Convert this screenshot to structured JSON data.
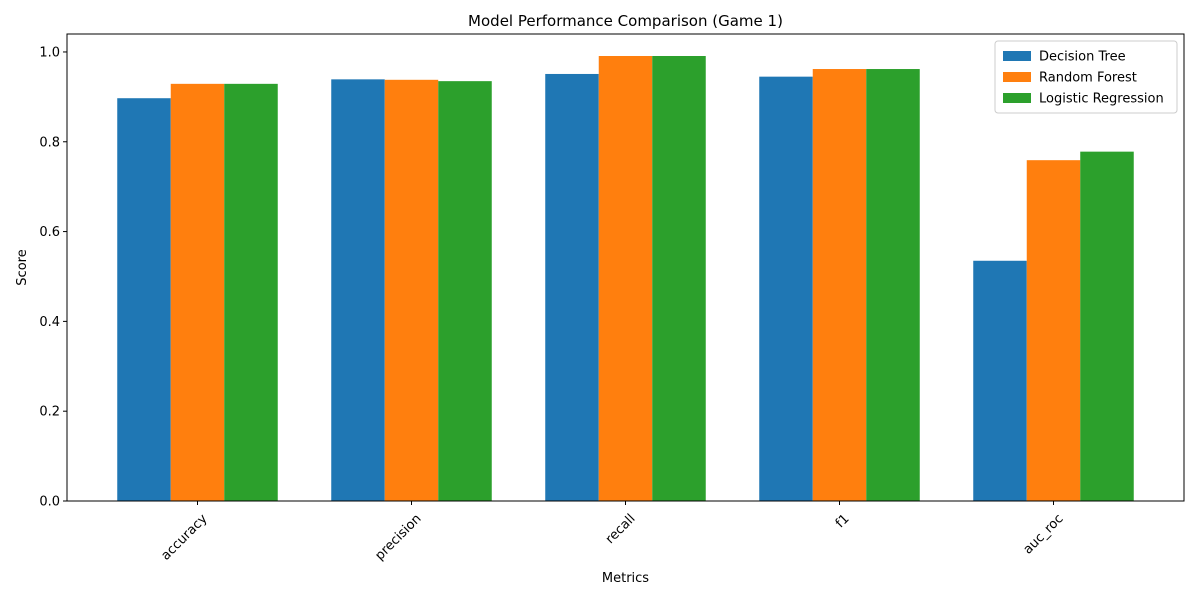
{
  "chart_data": {
    "type": "bar",
    "title": "Model Performance Comparison (Game 1)",
    "xlabel": "Metrics",
    "ylabel": "Score",
    "categories": [
      "accuracy",
      "precision",
      "recall",
      "f1",
      "auc_roc"
    ],
    "series": [
      {
        "name": "Decision Tree",
        "color": "#1f77b4",
        "values": [
          0.897,
          0.939,
          0.951,
          0.945,
          0.535
        ]
      },
      {
        "name": "Random Forest",
        "color": "#ff7f0e",
        "values": [
          0.929,
          0.938,
          0.991,
          0.962,
          0.759
        ]
      },
      {
        "name": "Logistic Regression",
        "color": "#2ca02c",
        "values": [
          0.929,
          0.935,
          0.991,
          0.962,
          0.778
        ]
      }
    ],
    "ylim": [
      0,
      1.04
    ],
    "yticks": [
      "0.0",
      "0.2",
      "0.4",
      "0.6",
      "0.8",
      "1.0"
    ],
    "tick_label_rotation_deg": 45,
    "grid": false,
    "legend_position": "top-right"
  }
}
